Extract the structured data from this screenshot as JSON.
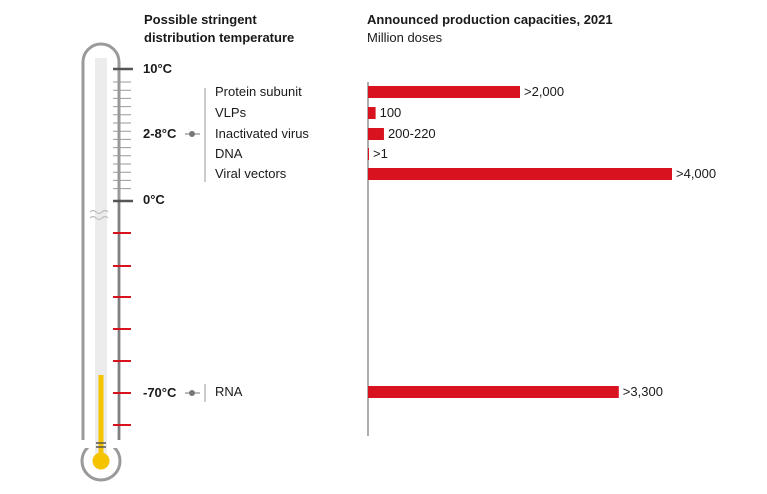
{
  "headers": {
    "left_line1": "Possible stringent",
    "left_line2": "distribution temperature",
    "right_title": "Announced production capacities, 2021",
    "right_subtitle": "Million doses"
  },
  "temperatures": {
    "t10": "10°C",
    "t28": "2-8°C",
    "t0": "0°C",
    "tm70": "-70°C"
  },
  "colors": {
    "bar": "#d8121f",
    "mercury": "#f5c400",
    "tick_cold": "#d8121f",
    "tick_warm": "#666666",
    "axis": "#777777"
  },
  "chart_data": {
    "type": "bar",
    "orientation": "horizontal",
    "title": "Announced production capacities, 2021",
    "subtitle": "Million doses",
    "categories": [
      "Protein subunit",
      "VLPs",
      "Inactivated virus",
      "DNA",
      "Viral vectors",
      "RNA"
    ],
    "values": [
      2000,
      100,
      210,
      1,
      4000,
      3300
    ],
    "labels": [
      ">2,000",
      "100",
      "200-220",
      ">1",
      ">4,000",
      ">3,300"
    ],
    "groups": [
      {
        "temperature": "2-8°C",
        "categories": [
          "Protein subunit",
          "VLPs",
          "Inactivated virus",
          "DNA",
          "Viral vectors"
        ]
      },
      {
        "temperature": "-70°C",
        "categories": [
          "RNA"
        ]
      }
    ],
    "xlim": [
      0,
      4000
    ]
  }
}
